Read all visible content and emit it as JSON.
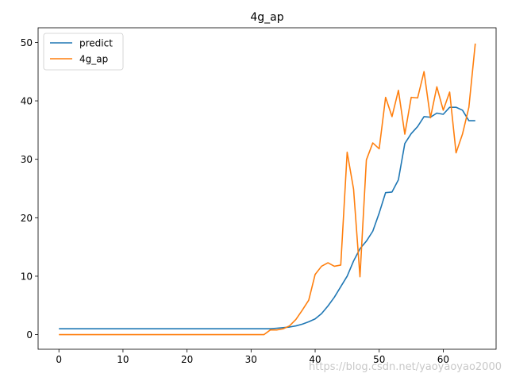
{
  "chart_data": {
    "type": "line",
    "title": "4g_ap",
    "xlabel": "",
    "ylabel": "",
    "xlim": [
      -3.25,
      68.25
    ],
    "ylim": [
      -2.5,
      52.5
    ],
    "xticks": [
      0,
      10,
      20,
      30,
      40,
      50,
      60
    ],
    "yticks": [
      0,
      10,
      20,
      30,
      40,
      50
    ],
    "grid": false,
    "legend": "top-left",
    "x": [
      0,
      1,
      2,
      3,
      4,
      5,
      6,
      7,
      8,
      9,
      10,
      11,
      12,
      13,
      14,
      15,
      16,
      17,
      18,
      19,
      20,
      21,
      22,
      23,
      24,
      25,
      26,
      27,
      28,
      29,
      30,
      31,
      32,
      33,
      34,
      35,
      36,
      37,
      38,
      39,
      40,
      41,
      42,
      43,
      44,
      45,
      46,
      47,
      48,
      49,
      50,
      51,
      52,
      53,
      54,
      55,
      56,
      57,
      58,
      59,
      60,
      61,
      62,
      63,
      64,
      65
    ],
    "series": [
      {
        "name": "predict",
        "color": "#1f77b4",
        "values": [
          1,
          1,
          1,
          1,
          1,
          1,
          1,
          1,
          1,
          1,
          1,
          1,
          1,
          1,
          1,
          1,
          1,
          1,
          1,
          1,
          1,
          1,
          1,
          1,
          1,
          1,
          1,
          1,
          1,
          1,
          1,
          1,
          1,
          1,
          1.1,
          1.2,
          1.3,
          1.5,
          1.8,
          2.2,
          2.7,
          3.6,
          4.9,
          6.4,
          8.2,
          10,
          12.6,
          14.7,
          16,
          17.7,
          20.8,
          24.3,
          24.4,
          26.5,
          32.7,
          34.4,
          35.6,
          37.3,
          37.2,
          37.9,
          37.7,
          38.9,
          38.9,
          38.4,
          36.6,
          36.6
        ]
      },
      {
        "name": "4g_ap",
        "color": "#ff7f0e",
        "values": [
          0,
          0,
          0,
          0,
          0,
          0,
          0,
          0,
          0,
          0,
          0,
          0,
          0,
          0,
          0,
          0,
          0,
          0,
          0,
          0,
          0,
          0,
          0,
          0,
          0,
          0,
          0,
          0,
          0,
          0,
          0,
          0,
          0,
          0.8,
          0.8,
          1,
          1.5,
          2.6,
          4.2,
          5.9,
          10.3,
          11.7,
          12.3,
          11.7,
          11.9,
          31.2,
          24.9,
          9.9,
          29.9,
          32.8,
          31.8,
          40.6,
          37.3,
          41.8,
          34.3,
          40.6,
          40.5,
          45,
          37.1,
          42.4,
          38.4,
          41.5,
          31.1,
          34.3,
          38.9,
          49.8
        ]
      }
    ]
  },
  "watermark": "https://blog.csdn.net/yaoyaoyao2000"
}
